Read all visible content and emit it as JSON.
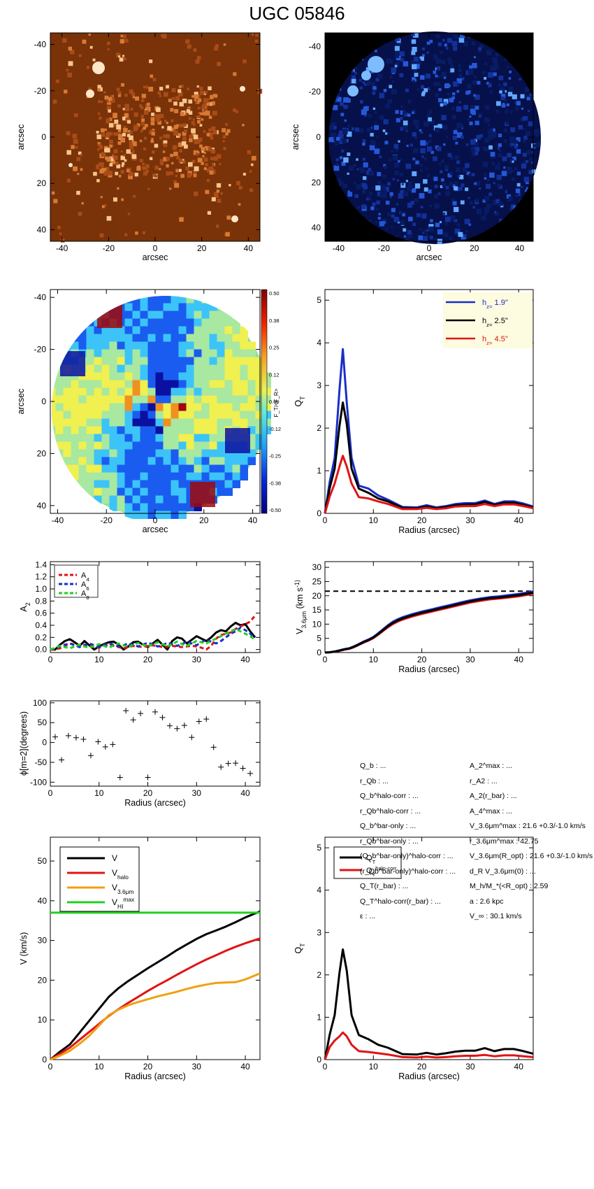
{
  "title": "UGC 05846",
  "colors": {
    "orange_bg": "#7a3208",
    "blue_bg": "#000000",
    "blue_line": "#1a2ec8",
    "black": "#000000",
    "red": "#e01414",
    "orange": "#f0a010",
    "green": "#20d020"
  },
  "images": {
    "axis_label": "arcsec",
    "ticks": [
      "-40",
      "-20",
      "0",
      "20",
      "40"
    ],
    "colorbar": {
      "ticks": [
        "0.50",
        "0.38",
        "0.25",
        "0.12",
        "0.00",
        "-0.12",
        "-0.25",
        "-0.38",
        "-0.50"
      ],
      "label": "F_T/<F_R>"
    }
  },
  "info_left": [
    {
      "text": "Q_b : ..."
    },
    {
      "text": "r_Qb : ..."
    },
    {
      "text": "Q_b^halo-corr : ..."
    },
    {
      "text": "r_Qb^halo-corr : ..."
    },
    {
      "text": "Q_b^bar-only : ..."
    },
    {
      "text": "r_Qb^bar-only : ..."
    },
    {
      "text": "(Q_b^bar-only)^halo-corr : ..."
    },
    {
      "text": "(r_Qb^bar-only)^halo-corr : ..."
    },
    {
      "text": "Q_T(r_bar) : ..."
    },
    {
      "text": "Q_T^halo-corr(r_bar) : ..."
    },
    {
      "text": "ε : ..."
    }
  ],
  "info_right": [
    {
      "text": "A_2^max : ..."
    },
    {
      "text": "r_A2 : ..."
    },
    {
      "text": "A_2(r_bar) : ..."
    },
    {
      "text": "A_4^max : ..."
    },
    {
      "text": "V_3.6μm^max : 21.6 +0.3/-1.0 km/s"
    },
    {
      "text": "r_3.6μm^max : 42.75"
    },
    {
      "text": "V_3.6μm(R_opt) : 21.6 +0.3/-1.0 km/s"
    },
    {
      "text": "d_R V_3.6μm(0) : ..."
    },
    {
      "text": "M_h/M_*(<R_opt) : 2.59"
    },
    {
      "text": "a : 2.6 kpc"
    },
    {
      "text": "V_∞ : 30.1 km/s"
    }
  ],
  "chart_data": [
    {
      "type": "line",
      "id": "qt",
      "xlabel": "Radius (arcsec)",
      "ylabel": "Q_T",
      "xlim": [
        0,
        43
      ],
      "ylim": [
        0,
        5.25
      ],
      "xticks": [
        0,
        10,
        20,
        30,
        40
      ],
      "yticks": [
        0,
        1,
        2,
        3,
        4,
        5
      ],
      "legend": [
        {
          "name": "h_z= 1.9''",
          "color": "#1a2ec8"
        },
        {
          "name": "h_z= 2.5''",
          "color": "#000000"
        },
        {
          "name": "h_z= 4.5''",
          "color": "#e01414"
        }
      ],
      "x": [
        0,
        1,
        2,
        3,
        3.7,
        4.5,
        5.5,
        7,
        9,
        11,
        13,
        16,
        19,
        21,
        23,
        25,
        27,
        29,
        31,
        33,
        35,
        37,
        39,
        41,
        43
      ],
      "series": [
        {
          "name": "h_z= 1.9''",
          "color": "#1a2ec8",
          "values": [
            0,
            0.75,
            1.3,
            2.9,
            3.85,
            2.6,
            1.3,
            0.65,
            0.58,
            0.42,
            0.32,
            0.15,
            0.14,
            0.19,
            0.14,
            0.17,
            0.22,
            0.24,
            0.24,
            0.3,
            0.22,
            0.28,
            0.28,
            0.23,
            0.16
          ]
        },
        {
          "name": "h_z= 2.5''",
          "color": "#000000",
          "values": [
            0,
            0.6,
            1.05,
            2.05,
            2.6,
            2.1,
            1.05,
            0.58,
            0.48,
            0.35,
            0.28,
            0.13,
            0.12,
            0.16,
            0.12,
            0.15,
            0.19,
            0.21,
            0.21,
            0.27,
            0.2,
            0.25,
            0.25,
            0.2,
            0.14
          ]
        },
        {
          "name": "h_z= 4.5''",
          "color": "#e01414",
          "values": [
            0,
            0.4,
            0.7,
            1.1,
            1.35,
            1.1,
            0.7,
            0.38,
            0.35,
            0.28,
            0.22,
            0.1,
            0.1,
            0.13,
            0.1,
            0.12,
            0.16,
            0.17,
            0.17,
            0.22,
            0.17,
            0.21,
            0.21,
            0.17,
            0.12
          ]
        }
      ]
    },
    {
      "type": "line",
      "id": "a2",
      "xlabel": "",
      "ylabel": "A_2",
      "xlim": [
        0,
        43
      ],
      "ylim": [
        -0.05,
        1.45
      ],
      "xticks": [
        0,
        10,
        20,
        30,
        40
      ],
      "yticks": [
        0.0,
        0.2,
        0.4,
        0.6,
        0.8,
        1.0,
        1.2,
        1.4
      ],
      "ytick_labels": [
        "0.0",
        "0.2",
        "0.4",
        "0.6",
        "0.8",
        "1.0",
        "1.2",
        "1.4"
      ],
      "legend": [
        {
          "name": "A_4",
          "color": "#e01414"
        },
        {
          "name": "A_6",
          "color": "#1a2ec8"
        },
        {
          "name": "A_8",
          "color": "#20d020"
        }
      ],
      "x": [
        0,
        1,
        2,
        3,
        4,
        5,
        6,
        7,
        8,
        9,
        10,
        11,
        12,
        13,
        14,
        15,
        16,
        17,
        18,
        19,
        20,
        21,
        22,
        23,
        24,
        25,
        26,
        27,
        28,
        29,
        30,
        31,
        32,
        33,
        34,
        35,
        36,
        37,
        38,
        39,
        40,
        41,
        42
      ],
      "series": [
        {
          "name": "A_2",
          "color": "#000000",
          "dashed": false,
          "values": [
            0.0,
            0.0,
            0.08,
            0.14,
            0.17,
            0.12,
            0.06,
            0.14,
            0.07,
            0.0,
            0.05,
            0.09,
            0.12,
            0.13,
            0.08,
            0.0,
            0.05,
            0.12,
            0.13,
            0.08,
            0.04,
            0.1,
            0.16,
            0.08,
            0.0,
            0.14,
            0.2,
            0.18,
            0.1,
            0.16,
            0.22,
            0.18,
            0.14,
            0.2,
            0.28,
            0.32,
            0.3,
            0.38,
            0.44,
            0.4,
            0.42,
            0.3,
            0.2
          ]
        },
        {
          "name": "A_4",
          "color": "#e01414",
          "dashed": true,
          "values": [
            0.0,
            0.0,
            0.02,
            0.06,
            0.1,
            0.08,
            0.05,
            0.08,
            0.06,
            0.04,
            0.03,
            0.06,
            0.08,
            0.06,
            0.04,
            0.02,
            0.04,
            0.06,
            0.05,
            0.04,
            0.06,
            0.07,
            0.06,
            0.04,
            0.05,
            0.06,
            0.05,
            0.04,
            0.05,
            0.06,
            0.05,
            0.03,
            0.0,
            0.06,
            0.18,
            0.24,
            0.26,
            0.28,
            0.34,
            0.38,
            0.42,
            0.46,
            0.56
          ]
        },
        {
          "name": "A_6",
          "color": "#1a2ec8",
          "dashed": true,
          "values": [
            0.0,
            0.02,
            0.05,
            0.08,
            0.1,
            0.07,
            0.04,
            0.07,
            0.1,
            0.07,
            0.04,
            0.08,
            0.1,
            0.08,
            0.05,
            0.07,
            0.1,
            0.08,
            0.05,
            0.08,
            0.11,
            0.09,
            0.05,
            0.07,
            0.11,
            0.09,
            0.06,
            0.09,
            0.13,
            0.1,
            0.07,
            0.12,
            0.16,
            0.13,
            0.1,
            0.14,
            0.2,
            0.26,
            0.3,
            0.36,
            0.32,
            0.26,
            0.2
          ]
        },
        {
          "name": "A_8",
          "color": "#20d020",
          "dashed": true,
          "values": [
            0.0,
            0.03,
            0.06,
            0.04,
            0.02,
            0.05,
            0.08,
            0.05,
            0.03,
            0.06,
            0.09,
            0.06,
            0.03,
            0.07,
            0.1,
            0.07,
            0.04,
            0.08,
            0.11,
            0.08,
            0.05,
            0.09,
            0.12,
            0.09,
            0.05,
            0.09,
            0.13,
            0.09,
            0.06,
            0.1,
            0.14,
            0.12,
            0.1,
            0.14,
            0.18,
            0.22,
            0.26,
            0.3,
            0.34,
            0.3,
            0.26,
            0.22,
            0.16
          ]
        }
      ]
    },
    {
      "type": "line",
      "id": "v36",
      "xlabel": "Radius (arcsec)",
      "ylabel": "V_3.6μm (km s^-1)",
      "xlim": [
        0,
        43
      ],
      "ylim": [
        0,
        32
      ],
      "xticks": [
        0,
        10,
        20,
        30,
        40
      ],
      "yticks": [
        0,
        5,
        10,
        15,
        20,
        25,
        30
      ],
      "hline": 21.6,
      "x": [
        0,
        1,
        2,
        3,
        4,
        5,
        6,
        7,
        8,
        9,
        10,
        11,
        12,
        13,
        14,
        15,
        16,
        18,
        20,
        22,
        24,
        26,
        28,
        30,
        32,
        34,
        36,
        38,
        40,
        42,
        43
      ],
      "series": [
        {
          "name": "upper",
          "color": "#1a2ec8",
          "values": [
            0,
            0.1,
            0.4,
            0.8,
            1.2,
            1.5,
            2.2,
            3.0,
            3.9,
            4.6,
            5.5,
            6.8,
            8.2,
            9.6,
            10.8,
            11.7,
            12.4,
            13.5,
            14.4,
            15.2,
            16.0,
            16.8,
            17.6,
            18.4,
            19.0,
            19.5,
            19.8,
            20.2,
            20.6,
            21.2,
            21.5
          ]
        },
        {
          "name": "lower",
          "color": "#e01414",
          "values": [
            0,
            0.1,
            0.3,
            0.6,
            1.0,
            1.3,
            1.9,
            2.7,
            3.5,
            4.2,
            5.1,
            6.3,
            7.6,
            8.9,
            10.0,
            10.9,
            11.6,
            12.7,
            13.6,
            14.4,
            15.2,
            16.0,
            16.8,
            17.6,
            18.2,
            18.7,
            19.0,
            19.4,
            19.8,
            20.4,
            20.7
          ]
        },
        {
          "name": "mean",
          "color": "#000000",
          "values": [
            0,
            0.1,
            0.35,
            0.7,
            1.1,
            1.4,
            2.05,
            2.85,
            3.7,
            4.4,
            5.3,
            6.55,
            7.9,
            9.25,
            10.4,
            11.3,
            12.0,
            13.1,
            14.0,
            14.8,
            15.6,
            16.4,
            17.2,
            18.0,
            18.6,
            19.1,
            19.4,
            19.8,
            20.2,
            20.8,
            21.1
          ]
        }
      ]
    },
    {
      "type": "scatter",
      "id": "phi",
      "xlabel": "Radius (arcsec)",
      "ylabel": "ϕ[m=2](degrees)",
      "xlim": [
        0,
        43
      ],
      "ylim": [
        -110,
        105
      ],
      "xticks": [
        0,
        10,
        20,
        30,
        40
      ],
      "yticks": [
        -100,
        -50,
        0,
        50,
        100
      ],
      "x": [
        1,
        2.3,
        3.7,
        5.3,
        6.8,
        8.3,
        9.8,
        11.3,
        12.8,
        14.3,
        15.5,
        17,
        18.5,
        20,
        21.5,
        23,
        24.5,
        26,
        27.5,
        29,
        30.5,
        32,
        33.5,
        35,
        36.5,
        38,
        39.5,
        41
      ],
      "y": [
        14,
        -44,
        17,
        12,
        8,
        -33,
        2,
        -11,
        -5,
        -88,
        80,
        57,
        73,
        -88,
        77,
        63,
        42,
        35,
        43,
        13,
        53,
        59,
        -12,
        -62,
        -53,
        -52,
        -65,
        -78
      ]
    },
    {
      "type": "line",
      "id": "vel",
      "xlabel": "Radius (arcsec)",
      "ylabel": "V (km/s)",
      "xlim": [
        0,
        43
      ],
      "ylim": [
        0,
        56
      ],
      "xticks": [
        0,
        10,
        20,
        30,
        40
      ],
      "yticks": [
        0,
        10,
        20,
        30,
        40,
        50
      ],
      "legend": [
        {
          "name": "V",
          "color": "#000000"
        },
        {
          "name": "V_halo",
          "color": "#e01414"
        },
        {
          "name": "V_3.6μm",
          "color": "#f0a010"
        },
        {
          "name": "V_HI^max",
          "color": "#20d020"
        }
      ],
      "x": [
        0,
        2,
        4,
        6,
        8,
        10,
        12,
        14,
        16,
        18,
        20,
        22,
        24,
        26,
        28,
        30,
        32,
        34,
        36,
        38,
        40,
        42,
        43
      ],
      "series": [
        {
          "name": "V",
          "color": "#000000",
          "values": [
            0,
            2.0,
            3.8,
            6.8,
            9.8,
            12.8,
            15.8,
            18.0,
            19.8,
            21.4,
            23.0,
            24.5,
            26.0,
            27.6,
            29.0,
            30.4,
            31.6,
            32.5,
            33.5,
            34.6,
            35.8,
            36.8,
            37.3
          ]
        },
        {
          "name": "V_halo",
          "color": "#e01414",
          "values": [
            0,
            1.5,
            3.0,
            5.0,
            7.0,
            9.0,
            11.0,
            12.7,
            14.3,
            15.8,
            17.3,
            18.7,
            20.0,
            21.4,
            22.7,
            24.0,
            25.2,
            26.3,
            27.4,
            28.4,
            29.3,
            30.1,
            30.5
          ]
        },
        {
          "name": "V_3.6μm",
          "color": "#f0a010",
          "values": [
            0,
            1.0,
            2.2,
            4.0,
            6.0,
            8.6,
            11.2,
            12.6,
            13.7,
            14.5,
            15.2,
            15.9,
            16.5,
            17.1,
            17.8,
            18.4,
            18.9,
            19.3,
            19.4,
            19.5,
            20.2,
            21.2,
            21.7
          ]
        },
        {
          "name": "V_HI^max",
          "color": "#20d020",
          "values": [
            37,
            37,
            37,
            37,
            37,
            37,
            37,
            37,
            37,
            37,
            37,
            37,
            37,
            37,
            37,
            37,
            37,
            37,
            37,
            37,
            37,
            37,
            37
          ]
        }
      ]
    },
    {
      "type": "line",
      "id": "qt2",
      "xlabel": "Radius (arcsec)",
      "ylabel": "Q_T",
      "xlim": [
        0,
        43
      ],
      "ylim": [
        0,
        5.25
      ],
      "xticks": [
        0,
        10,
        20,
        30,
        40
      ],
      "yticks": [
        0,
        1,
        2,
        3,
        4,
        5
      ],
      "legend": [
        {
          "name": "Q_T",
          "color": "#000000"
        },
        {
          "name": "Q_T^halo-corr",
          "color": "#e01414"
        }
      ],
      "x": [
        0,
        1,
        2,
        3,
        3.7,
        4.5,
        5.5,
        7,
        9,
        11,
        13,
        16,
        19,
        21,
        23,
        25,
        27,
        29,
        31,
        33,
        35,
        37,
        39,
        41,
        43
      ],
      "series": [
        {
          "name": "Q_T",
          "color": "#000000",
          "values": [
            0,
            0.6,
            1.05,
            2.05,
            2.6,
            2.1,
            1.05,
            0.58,
            0.48,
            0.35,
            0.28,
            0.13,
            0.12,
            0.16,
            0.12,
            0.15,
            0.19,
            0.21,
            0.21,
            0.27,
            0.2,
            0.25,
            0.25,
            0.2,
            0.14
          ]
        },
        {
          "name": "Q_T^halo-corr",
          "color": "#e01414",
          "values": [
            0,
            0.3,
            0.45,
            0.55,
            0.64,
            0.55,
            0.35,
            0.2,
            0.18,
            0.15,
            0.12,
            0.06,
            0.05,
            0.07,
            0.05,
            0.06,
            0.08,
            0.09,
            0.09,
            0.11,
            0.08,
            0.1,
            0.1,
            0.08,
            0.06
          ]
        }
      ]
    }
  ]
}
